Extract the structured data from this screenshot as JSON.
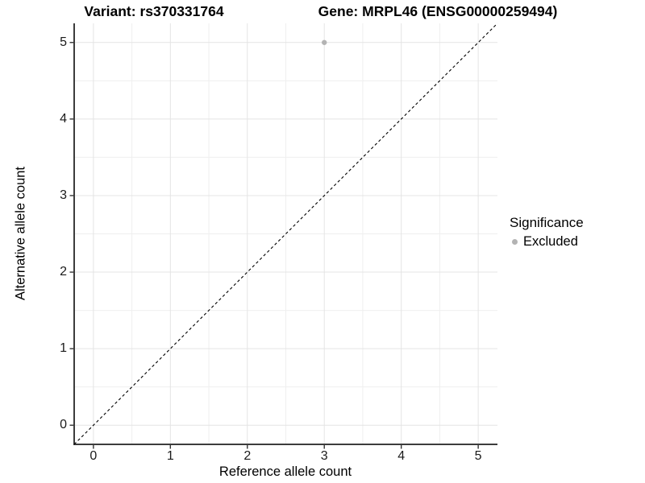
{
  "chart_data": {
    "type": "scatter",
    "title_left": "Variant: rs370331764",
    "title_right": "Gene: MRPL46 (ENSG00000259494)",
    "xlabel": "Reference allele count",
    "ylabel": "Alternative allele count",
    "xlim": [
      -0.25,
      5.25
    ],
    "ylim": [
      -0.25,
      5.25
    ],
    "x_ticks": [
      0,
      1,
      2,
      3,
      4,
      5
    ],
    "y_ticks": [
      0,
      1,
      2,
      3,
      4,
      5
    ],
    "minor_gridlines_x": [
      0.5,
      1.5,
      2.5,
      3.5,
      4.5
    ],
    "minor_gridlines_y": [
      0.5,
      1.5,
      2.5,
      3.5,
      4.5
    ],
    "grid": "on",
    "points": [
      {
        "x": 3,
        "y": 5,
        "series": "Excluded"
      }
    ],
    "reference_line": {
      "slope": 1,
      "intercept": 0,
      "style": "dashed",
      "color": "#000000"
    },
    "legend": {
      "title": "Significance",
      "position": "right",
      "entries": [
        {
          "label": "Excluded",
          "color": "#b3b3b3",
          "marker": "circle"
        }
      ]
    },
    "colors": {
      "point": "#b3b3b3",
      "grid_major": "#e4e4e4",
      "grid_minor": "#efefef",
      "axis_line": "#3c3c3c",
      "tick_mark": "#333333",
      "background": "#ffffff"
    }
  }
}
